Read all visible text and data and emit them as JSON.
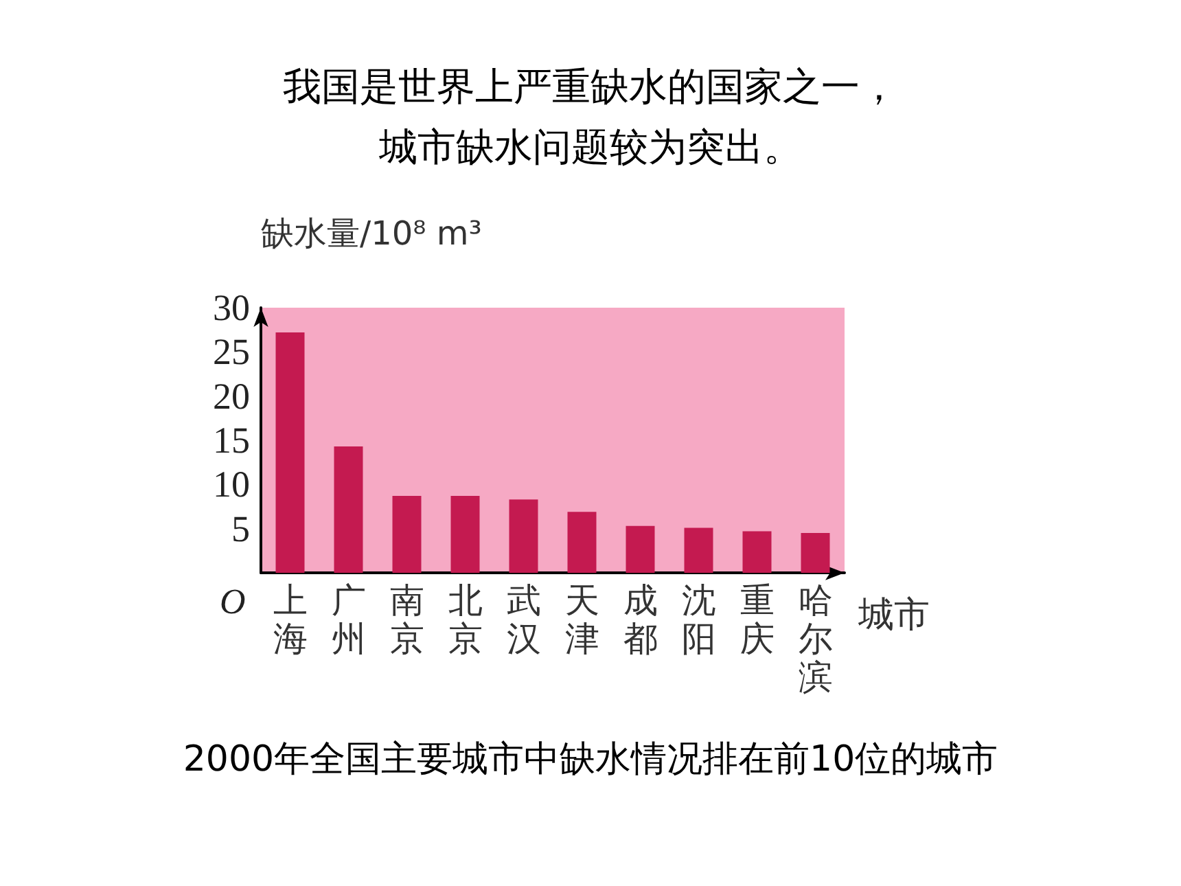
{
  "chart_data": {
    "type": "bar",
    "title": "我国是世界上严重缺水的国家之一，城市缺水问题较为突出。",
    "ylabel": "缺水量/10⁸ m³",
    "xlabel": "城市",
    "categories": [
      "上海",
      "广州",
      "南京",
      "北京",
      "武汉",
      "天津",
      "成都",
      "沈阳",
      "重庆",
      "哈尔滨"
    ],
    "values": [
      27.2,
      14.3,
      8.7,
      8.7,
      8.3,
      6.9,
      5.3,
      5.1,
      4.7,
      4.5
    ],
    "color": "#c41a50",
    "ylim": [
      0,
      30
    ],
    "yticks": [
      5,
      10,
      15,
      20,
      25,
      30
    ],
    "bands": [
      {
        "axis": "y",
        "from": 0,
        "to": 30,
        "color": "#f6a9c4"
      }
    ],
    "annotations": [
      "O",
      "2000年全国主要城市中缺水情况排在前10位的城市"
    ]
  }
}
